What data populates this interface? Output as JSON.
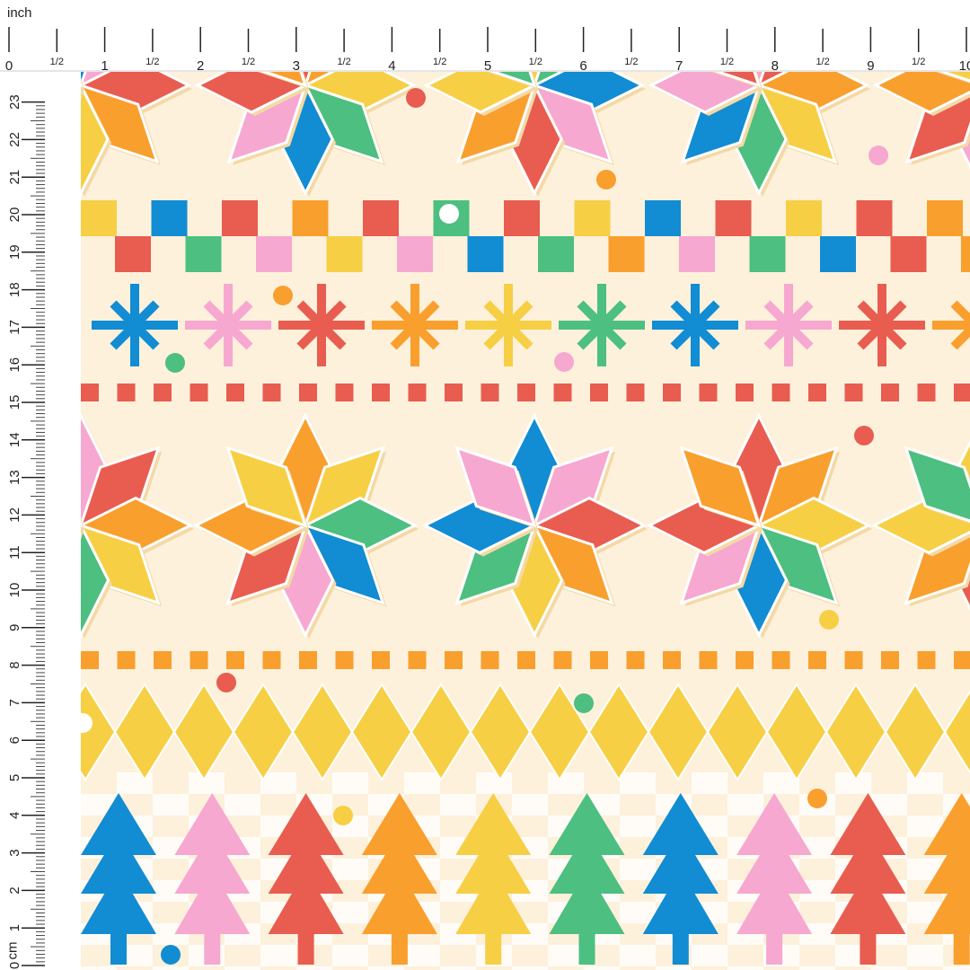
{
  "ruler": {
    "top_unit": "inch",
    "left_unit": "cm",
    "inch_labels": [
      "0",
      "1/2",
      "1",
      "1/2",
      "2",
      "1/2",
      "3",
      "1/2",
      "4",
      "1/2",
      "5",
      "1/2",
      "6",
      "1/2",
      "7",
      "1/2",
      "8",
      "1/2",
      "9",
      "1/2",
      "10"
    ],
    "cm_labels": [
      "0",
      "1",
      "2",
      "3",
      "4",
      "5",
      "6",
      "7",
      "8",
      "9",
      "10",
      "11",
      "12",
      "13",
      "14",
      "15",
      "16",
      "17",
      "18",
      "19",
      "20",
      "21",
      "22",
      "23"
    ]
  },
  "palette": {
    "background": "#FDF1DC",
    "red": "#E85D50",
    "orange": "#F99F2E",
    "yellow": "#F7CF45",
    "green": "#4DBF80",
    "blue": "#128CD2",
    "pink": "#F6A8D0",
    "shadow": "#F3D9A6"
  }
}
